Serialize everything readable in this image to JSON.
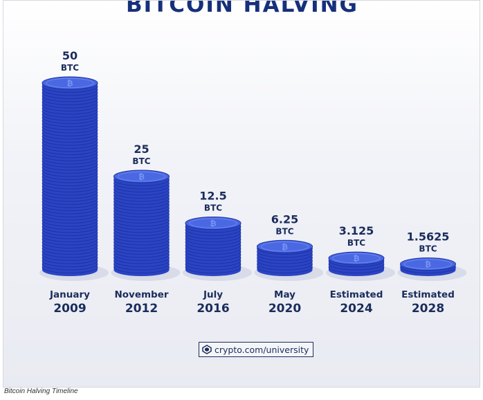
{
  "title": "BITCOIN HALVING",
  "brand": {
    "url_text": "crypto.com/university",
    "logo_icon": "crypto-com-logo-icon"
  },
  "caption": "Bitcoin Halving Timeline",
  "colors": {
    "coin_side": "#2a44c4",
    "coin_top": "#4a68e2",
    "coin_edge": "#1c30a0",
    "text": "#1a2c5b",
    "title": "#16307a"
  },
  "chart_data": {
    "type": "bar",
    "title": "BITCOIN HALVING",
    "xlabel": "",
    "ylabel": "",
    "unit": "BTC",
    "ylim": [
      0,
      50
    ],
    "categories": [
      {
        "month": "January",
        "year": "2009"
      },
      {
        "month": "November",
        "year": "2012"
      },
      {
        "month": "July",
        "year": "2016"
      },
      {
        "month": "May",
        "year": "2020"
      },
      {
        "month": "Estimated",
        "year": "2024"
      },
      {
        "month": "Estimated",
        "year": "2028"
      }
    ],
    "values": [
      50,
      25,
      12.5,
      6.25,
      3.125,
      1.5625
    ],
    "value_labels": [
      "50",
      "25",
      "12.5",
      "6.25",
      "3.125",
      "1.5625"
    ]
  }
}
